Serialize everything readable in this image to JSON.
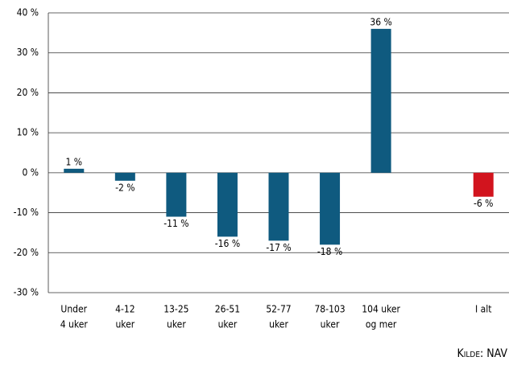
{
  "chart_data": {
    "type": "bar",
    "categories": [
      [
        "Under",
        "4 uker"
      ],
      [
        "4-12",
        "uker"
      ],
      [
        "13-25",
        "uker"
      ],
      [
        "26-51",
        "uker"
      ],
      [
        "52-77",
        "uker"
      ],
      [
        "78-103",
        "uker"
      ],
      [
        "104 uker",
        "og mer"
      ],
      null,
      [
        "I alt"
      ]
    ],
    "values": [
      1,
      -2,
      -11,
      -16,
      -17,
      -18,
      36,
      null,
      -6
    ],
    "value_labels": [
      "1 %",
      "-2 %",
      "-11 %",
      "-16 %",
      "-17 %",
      "-18 %",
      "36 %",
      null,
      "-6 %"
    ],
    "colors": [
      "#0f5a7f",
      "#0f5a7f",
      "#0f5a7f",
      "#0f5a7f",
      "#0f5a7f",
      "#0f5a7f",
      "#0f5a7f",
      null,
      "#d2141e"
    ],
    "ylim": [
      -30,
      40
    ],
    "yticks": [
      {
        "value": -30,
        "label": "-30 %"
      },
      {
        "value": -20,
        "label": "-20 %"
      },
      {
        "value": -10,
        "label": "-10 %"
      },
      {
        "value": 0,
        "label": "0 %"
      },
      {
        "value": 10,
        "label": "10 %"
      },
      {
        "value": 20,
        "label": "20 %"
      },
      {
        "value": 30,
        "label": "30 %"
      },
      {
        "value": 40,
        "label": "40 %"
      }
    ],
    "grid": true,
    "source": "Kilde: NAV"
  }
}
